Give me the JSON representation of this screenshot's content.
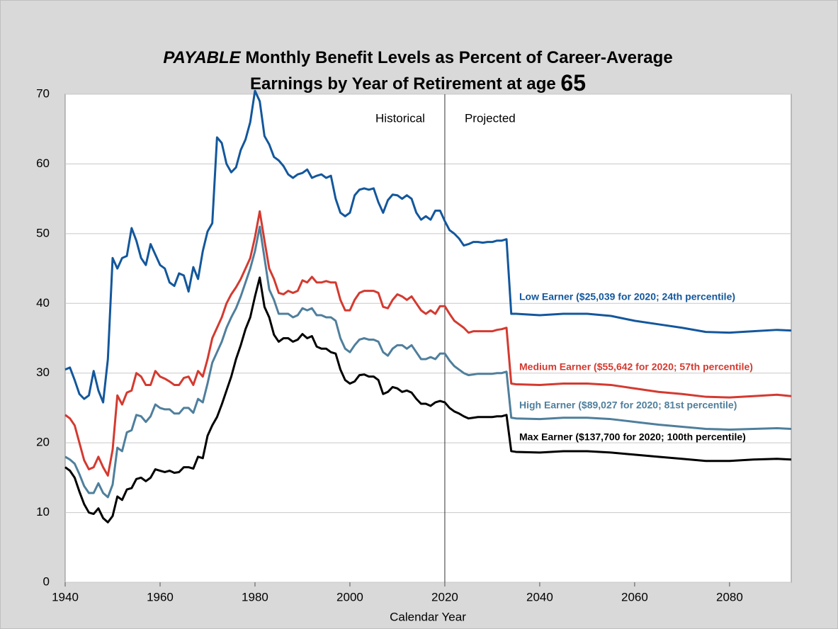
{
  "chart_data": {
    "type": "line",
    "title": [
      "PAYABLE",
      "Monthly Benefit Levels as Percent of Career-Average",
      "Earnings by Year of Retirement at age",
      "65"
    ],
    "x_label": "Calendar Year",
    "annotations": [
      "Historical",
      "Projected"
    ],
    "divider_x": 2020,
    "xlim": [
      1940,
      2093
    ],
    "xticks": [
      1940,
      1960,
      1980,
      2000,
      2020,
      2040,
      2060,
      2080
    ],
    "ylim": [
      0,
      70
    ],
    "yticks": [
      0,
      10,
      20,
      30,
      40,
      50,
      60,
      70
    ],
    "grid": true,
    "x": [
      1940,
      1941,
      1942,
      1943,
      1944,
      1945,
      1946,
      1947,
      1948,
      1949,
      1950,
      1951,
      1952,
      1953,
      1954,
      1955,
      1956,
      1957,
      1958,
      1959,
      1960,
      1961,
      1962,
      1963,
      1964,
      1965,
      1966,
      1967,
      1968,
      1969,
      1970,
      1971,
      1972,
      1973,
      1974,
      1975,
      1976,
      1977,
      1978,
      1979,
      1980,
      1981,
      1982,
      1983,
      1984,
      1985,
      1986,
      1987,
      1988,
      1989,
      1990,
      1991,
      1992,
      1993,
      1994,
      1995,
      1996,
      1997,
      1998,
      1999,
      2000,
      2001,
      2002,
      2003,
      2004,
      2005,
      2006,
      2007,
      2008,
      2009,
      2010,
      2011,
      2012,
      2013,
      2014,
      2015,
      2016,
      2017,
      2018,
      2019,
      2020,
      2021,
      2022,
      2023,
      2024,
      2025,
      2026,
      2027,
      2028,
      2029,
      2030,
      2031,
      2032,
      2033,
      2034,
      2035,
      2040,
      2045,
      2050,
      2055,
      2060,
      2065,
      2070,
      2075,
      2080,
      2085,
      2090,
      2093
    ],
    "series": [
      {
        "name": "Low Earner ($25,039 for 2020; 24th percentile)",
        "color": "#13579c",
        "values": [
          30.5,
          30.8,
          29,
          27,
          26.3,
          26.8,
          30.3,
          27.5,
          25.8,
          32,
          46.5,
          45,
          46.5,
          46.8,
          50.8,
          49,
          46.5,
          45.5,
          48.5,
          47,
          45.5,
          45,
          43,
          42.5,
          44.3,
          44,
          41.7,
          45.2,
          43.5,
          47.5,
          50.3,
          51.5,
          63.8,
          63,
          60,
          58.8,
          59.5,
          62,
          63.5,
          66,
          70.5,
          69,
          64,
          62.8,
          61,
          60.5,
          59.7,
          58.5,
          58,
          58.5,
          58.7,
          59.2,
          58,
          58.3,
          58.5,
          58,
          58.3,
          55,
          53,
          52.5,
          53,
          55.5,
          56.3,
          56.5,
          56.3,
          56.5,
          54.5,
          53,
          54.8,
          55.6,
          55.5,
          55,
          55.5,
          55,
          53,
          52,
          52.5,
          52,
          53.3,
          53.3,
          51.8,
          50.5,
          50,
          49.3,
          48.3,
          48.5,
          48.8,
          48.8,
          48.7,
          48.8,
          48.8,
          49,
          49,
          49.2,
          38.5,
          38.5,
          38.3,
          38.5,
          38.5,
          38.2,
          37.5,
          37,
          36.5,
          35.9,
          35.8,
          36,
          36.2,
          36.1
        ]
      },
      {
        "name": "Medium Earner ($55,642 for 2020; 57th percentile)",
        "color": "#d43a30",
        "values": [
          24,
          23.5,
          22.5,
          20,
          17.5,
          16.2,
          16.5,
          18,
          16.5,
          15.3,
          19,
          26.8,
          25.5,
          27.2,
          27.5,
          30,
          29.5,
          28.3,
          28.3,
          30.3,
          29.5,
          29.2,
          28.8,
          28.3,
          28.3,
          29.3,
          29.5,
          28.3,
          30.3,
          29.5,
          32,
          35,
          36.5,
          38,
          40,
          41.3,
          42.3,
          43.5,
          45,
          46.5,
          49.5,
          53.2,
          49,
          45,
          43.5,
          41.5,
          41.3,
          41.8,
          41.5,
          41.8,
          43.3,
          43,
          43.8,
          43,
          43,
          43.2,
          43,
          43,
          40.5,
          39,
          39,
          40.5,
          41.5,
          41.8,
          41.8,
          41.8,
          41.5,
          39.5,
          39.3,
          40.5,
          41.3,
          41,
          40.5,
          41,
          40,
          39,
          38.5,
          39,
          38.5,
          39.6,
          39.6,
          38.5,
          37.5,
          37,
          36.5,
          35.8,
          36,
          36,
          36,
          36,
          36,
          36.2,
          36.3,
          36.5,
          28.5,
          28.4,
          28.3,
          28.5,
          28.5,
          28.3,
          27.8,
          27.3,
          27,
          26.6,
          26.5,
          26.7,
          26.9,
          26.7
        ]
      },
      {
        "name": "High Earner ($89,027 for 2020; 81st percentile)",
        "color": "#4f7f9c",
        "values": [
          18,
          17.6,
          17,
          15.5,
          13.8,
          12.8,
          12.8,
          14.2,
          12.8,
          12.2,
          14,
          19.3,
          18.8,
          21.5,
          21.8,
          24,
          23.8,
          23,
          23.8,
          25.5,
          25,
          24.8,
          24.8,
          24.2,
          24.2,
          25,
          25,
          24.3,
          26.3,
          25.8,
          28.5,
          31.5,
          33,
          34.5,
          36.5,
          38,
          39.3,
          41,
          43,
          45,
          47.5,
          51,
          46.5,
          42,
          40.5,
          38.5,
          38.5,
          38.5,
          38,
          38.3,
          39.3,
          39,
          39.3,
          38.3,
          38.3,
          38,
          38,
          37.5,
          35,
          33.5,
          33,
          34,
          34.8,
          35,
          34.8,
          34.8,
          34.5,
          33,
          32.5,
          33.5,
          34,
          34,
          33.5,
          34,
          33,
          32,
          32,
          32.3,
          32,
          32.8,
          32.8,
          31.8,
          31,
          30.5,
          30,
          29.7,
          29.8,
          29.9,
          29.9,
          29.9,
          29.9,
          30,
          30,
          30.2,
          23.6,
          23.5,
          23.4,
          23.6,
          23.6,
          23.4,
          23,
          22.6,
          22.3,
          22,
          21.9,
          22,
          22.1,
          22
        ]
      },
      {
        "name": "Max Earner ($137,700 for 2020; 100th percentile)",
        "color": "#000000",
        "values": [
          16.5,
          16,
          15,
          13,
          11.2,
          10,
          9.8,
          10.6,
          9.2,
          8.6,
          9.5,
          12.3,
          11.8,
          13.3,
          13.5,
          14.8,
          15,
          14.5,
          15,
          16.2,
          16,
          15.8,
          16,
          15.7,
          15.8,
          16.5,
          16.5,
          16.3,
          18,
          17.8,
          21,
          22.5,
          23.7,
          25.5,
          27.5,
          29.5,
          32,
          34,
          36.3,
          38,
          41,
          43.7,
          39.5,
          38,
          35.5,
          34.5,
          35,
          35,
          34.5,
          34.8,
          35.6,
          35,
          35.3,
          33.8,
          33.5,
          33.5,
          33,
          32.8,
          30.5,
          29,
          28.5,
          28.8,
          29.7,
          29.8,
          29.5,
          29.5,
          29,
          27,
          27.3,
          28,
          27.8,
          27.3,
          27.5,
          27.2,
          26.3,
          25.6,
          25.6,
          25.3,
          25.8,
          26,
          25.8,
          25,
          24.5,
          24.2,
          23.8,
          23.5,
          23.6,
          23.7,
          23.7,
          23.7,
          23.7,
          23.8,
          23.8,
          24,
          18.8,
          18.7,
          18.6,
          18.8,
          18.8,
          18.6,
          18.3,
          18,
          17.7,
          17.4,
          17.4,
          17.6,
          17.7,
          17.6
        ]
      }
    ]
  }
}
